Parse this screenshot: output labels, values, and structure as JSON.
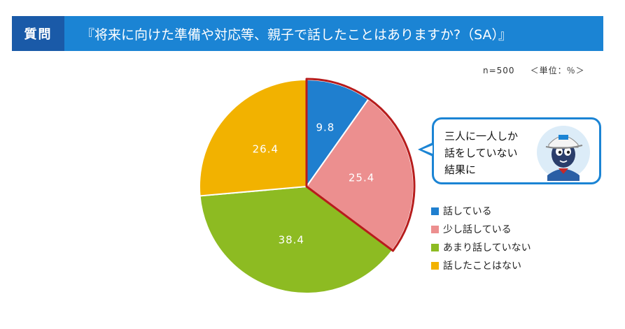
{
  "header": {
    "tag": "質問",
    "question": "『将来に向けた準備や対応等、親子で話したことはありますか?（SA）』"
  },
  "meta": {
    "n": "n=500",
    "unit": "＜単位：％＞"
  },
  "callout": {
    "lines": [
      "三人に一人しか",
      "話をしていない",
      "結果に"
    ]
  },
  "colors": {
    "header_bg": "#1b84d4",
    "header_tag_bg": "#1a5aa8",
    "highlight_border": "#b71c1c"
  },
  "chart_data": {
    "type": "pie",
    "title": "",
    "unit": "%",
    "n": 500,
    "slices": [
      {
        "label": "話している",
        "value": 9.8,
        "color": "#1f7fcf"
      },
      {
        "label": "少し話している",
        "value": 25.4,
        "color": "#ec8f8f"
      },
      {
        "label": "あまり話していない",
        "value": 38.4,
        "color": "#8dbb22"
      },
      {
        "label": "話したことはない",
        "value": 26.4,
        "color": "#f2b200"
      }
    ],
    "highlighted_slices": [
      "話している",
      "少し話している"
    ],
    "legend_position": "right"
  }
}
